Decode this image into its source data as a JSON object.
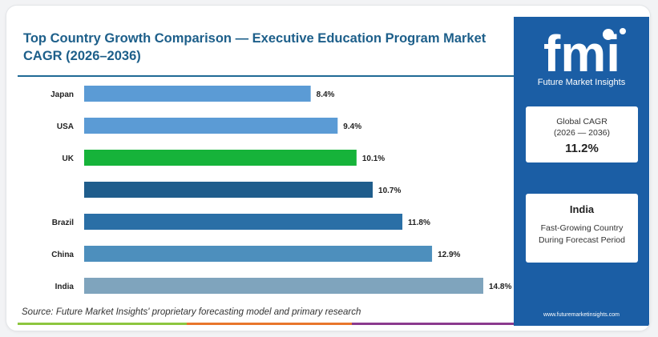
{
  "title": "Top Country Growth Comparison — Executive Education Program Market CAGR (2026–2036)",
  "source": "Source: Future Market Insights' proprietary forecasting model and primary research",
  "chart_data": {
    "type": "bar",
    "orientation": "horizontal",
    "title": "Top Country Growth Comparison — Executive Education Program Market CAGR (2026–2036)",
    "categories": [
      "Japan",
      "USA",
      "UK",
      "",
      "Brazil",
      "China",
      "India"
    ],
    "values": [
      8.4,
      9.4,
      10.1,
      10.7,
      11.8,
      12.9,
      14.8
    ],
    "value_labels": [
      "8.4%",
      "9.4%",
      "10.1%",
      "10.7%",
      "11.8%",
      "12.9%",
      "14.8%"
    ],
    "bar_colors": [
      "#5b9bd5",
      "#5b9bd5",
      "#16b33a",
      "#1f5d8c",
      "#2a6fa6",
      "#4d8fbd",
      "#7fa4bd"
    ],
    "unit": "%",
    "xlim": [
      0,
      14.8
    ],
    "grid": false,
    "legend": "none"
  },
  "side_panel": {
    "brand": "fmi",
    "brand_name": "Future Market Insights",
    "global_cagr_label": "Global CAGR",
    "global_cagr_period": "(2026 — 2036)",
    "global_cagr_value": "11.2%",
    "highlight_country": "India",
    "highlight_line1": "Fast-Growing Country",
    "highlight_line2": "During Forecast Period",
    "website": "www.futuremarketinsights.com",
    "panel_color": "#1b5ea5"
  },
  "bottom_bar_colors": [
    "#8dc63f",
    "#e8762b",
    "#8b3a8e"
  ]
}
